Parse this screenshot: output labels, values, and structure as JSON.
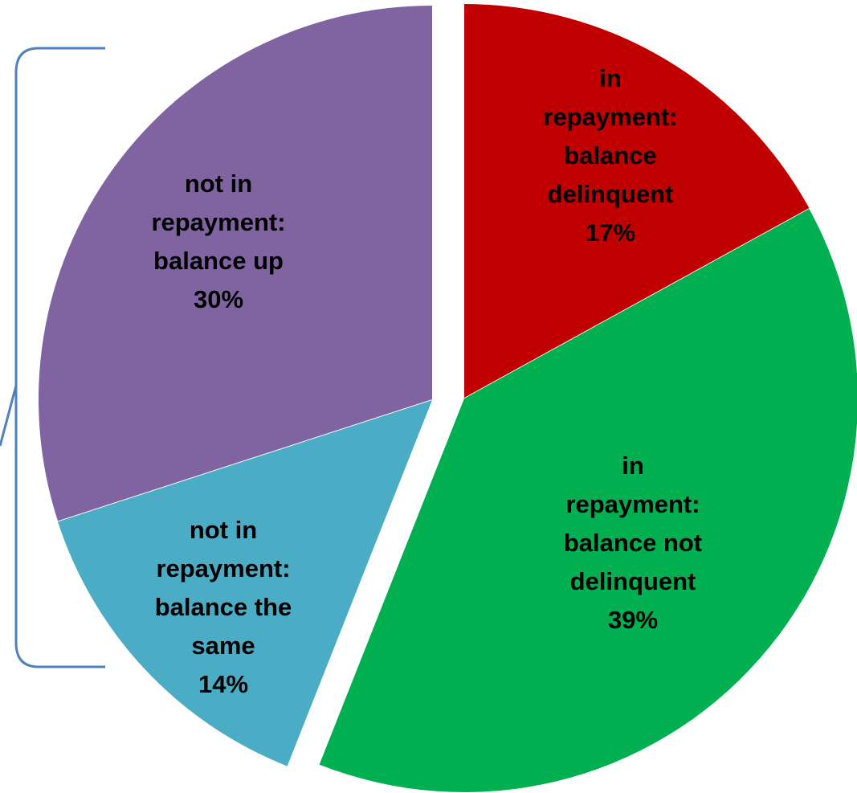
{
  "chart_data": {
    "type": "pie",
    "start_angle_deg": 0,
    "direction": "clockwise",
    "exploded": true,
    "slices": [
      {
        "label_lines": [
          "in",
          "repayment:",
          "balance",
          "delinquent"
        ],
        "value_label": "17%",
        "value": 17,
        "color": "#c00000"
      },
      {
        "label_lines": [
          "in",
          "repayment:",
          "balance not",
          "delinquent"
        ],
        "value_label": "39%",
        "value": 39,
        "color": "#00b050"
      },
      {
        "label_lines": [
          "not in",
          "repayment:",
          "balance the",
          "same"
        ],
        "value_label": "14%",
        "value": 14,
        "color": "#4bacc6"
      },
      {
        "label_lines": [
          "not in",
          "repayment:",
          "balance up"
        ],
        "value_label": "30%",
        "value": 30,
        "color": "#8064a2"
      }
    ],
    "annotations": [
      {
        "type": "bracket",
        "spans": [
          "not in repayment"
        ],
        "side": "left",
        "color": "#4f81bd"
      }
    ],
    "legend": "none"
  }
}
